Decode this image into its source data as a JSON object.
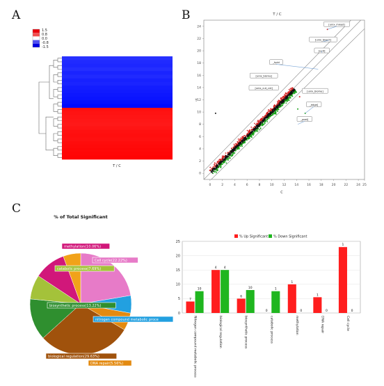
{
  "panels": {
    "a": "A",
    "b": "B",
    "c": "C"
  },
  "chart_data": [
    {
      "type": "heatmap",
      "panel": "A",
      "colorbar": {
        "ticks": [
          "1.5",
          "0.8",
          "0.0",
          "-0.8",
          "-1.5"
        ],
        "colors": [
          "#e8000b",
          "#f05050",
          "#ffffff",
          "#5050f0",
          "#0000e0"
        ]
      },
      "rows": [
        -1.1,
        -1.2,
        -1.25,
        -1.15,
        -1.3,
        -1.2,
        -1.35,
        -1.3,
        -1.4,
        -1.45,
        -1.5,
        -1.55,
        -1.6,
        -1.7,
        1.3,
        1.25,
        1.2,
        1.15,
        1.1,
        1.2,
        1.3,
        1.35,
        1.3,
        1.4,
        1.45,
        1.5,
        1.55,
        1.6
      ],
      "xlabel": "T / C"
    },
    {
      "type": "scatter",
      "panel": "B",
      "title": "T / C",
      "xlabel": "C",
      "ylabel": "T",
      "xlim": [
        -1,
        25
      ],
      "ylim": [
        -1,
        25
      ],
      "xticks": [
        "0",
        "2",
        "4",
        "6",
        "8",
        "10",
        "12",
        "14",
        "16",
        "18",
        "20",
        "22",
        "24",
        "25"
      ],
      "yticks": [
        "0",
        "2",
        "4",
        "6",
        "8",
        "10",
        "12",
        "14",
        "16",
        "18",
        "20",
        "22",
        "24"
      ],
      "series_colors": {
        "up": "#d42020",
        "down": "#18a018",
        "none": "#111111"
      },
      "annotations": [
        {
          "text": "[unix_mixed]",
          "x": 20.5,
          "y": 24.3
        },
        {
          "text": "[unix_bisect]",
          "x": 18.3,
          "y": 21.8
        },
        {
          "text": "[exit]",
          "x": 18.1,
          "y": 20.0
        },
        {
          "text": "_hpld",
          "x": 10.7,
          "y": 18.1
        },
        {
          "text": "[unix_bisrna]",
          "x": 8.7,
          "y": 15.9
        },
        {
          "text": "[unix_cut_cnt]",
          "x": 8.7,
          "y": 13.9
        },
        {
          "text": "[unix_biome]",
          "x": 17.0,
          "y": 13.4
        },
        {
          "text": "_edge]",
          "x": 16.8,
          "y": 11.2
        },
        {
          "text": "_post]",
          "x": 15.3,
          "y": 8.8
        }
      ],
      "ticks_note": ""
    },
    {
      "type": "pie",
      "panel": "C",
      "title": "% of Total Significant",
      "slices": [
        {
          "label": "Cell cycle(22.22%)",
          "value": 22.22,
          "color": "#e77bc8"
        },
        {
          "label": "nitrogen compound metabolic proce",
          "value": 5.56,
          "color": "#22a0e0"
        },
        {
          "label": "DNA repair(5.56%)",
          "value": 5.56,
          "color": "#e38a10"
        },
        {
          "label": "biological regulation(29.63%)",
          "value": 29.63,
          "color": "#a0520c"
        },
        {
          "label": "biosynthetic process(13.22%)",
          "value": 13.22,
          "color": "#2f8f2f"
        },
        {
          "label": "catabolic process(7.69%)",
          "value": 7.69,
          "color": "#a4c23a"
        },
        {
          "label": "methylation(10.06%)",
          "value": 10.06,
          "color": "#d1177a"
        },
        {
          "label": "",
          "value": 5.56,
          "color": "#f1a21a"
        }
      ]
    },
    {
      "type": "bar",
      "panel": "C",
      "legend": [
        "% Up Significant",
        "% Down Significant"
      ],
      "colors": {
        "up": "#ff1e1e",
        "down": "#1fb61f"
      },
      "categories": [
        "Nitrogen compound metabolic process",
        "biological regulation",
        "biosynthetic process",
        "catabolic process",
        "methylation",
        "DNA repair",
        "Cell cycle"
      ],
      "series": [
        {
          "name": "% Up Significant",
          "values": [
            4,
            15,
            5,
            0,
            10,
            5.5,
            23
          ],
          "labels": [
            "7",
            "4",
            "6",
            "0",
            "1",
            "1",
            "1"
          ]
        },
        {
          "name": "% Down Significant",
          "values": [
            7.6,
            15,
            8,
            7.6,
            0,
            0,
            0
          ],
          "labels": [
            "10",
            "4",
            "10",
            "1",
            "0",
            "0",
            "0"
          ]
        }
      ],
      "ylim": [
        0,
        25
      ],
      "yticks": [
        "0",
        "5",
        "10",
        "15",
        "20",
        "25"
      ]
    }
  ]
}
